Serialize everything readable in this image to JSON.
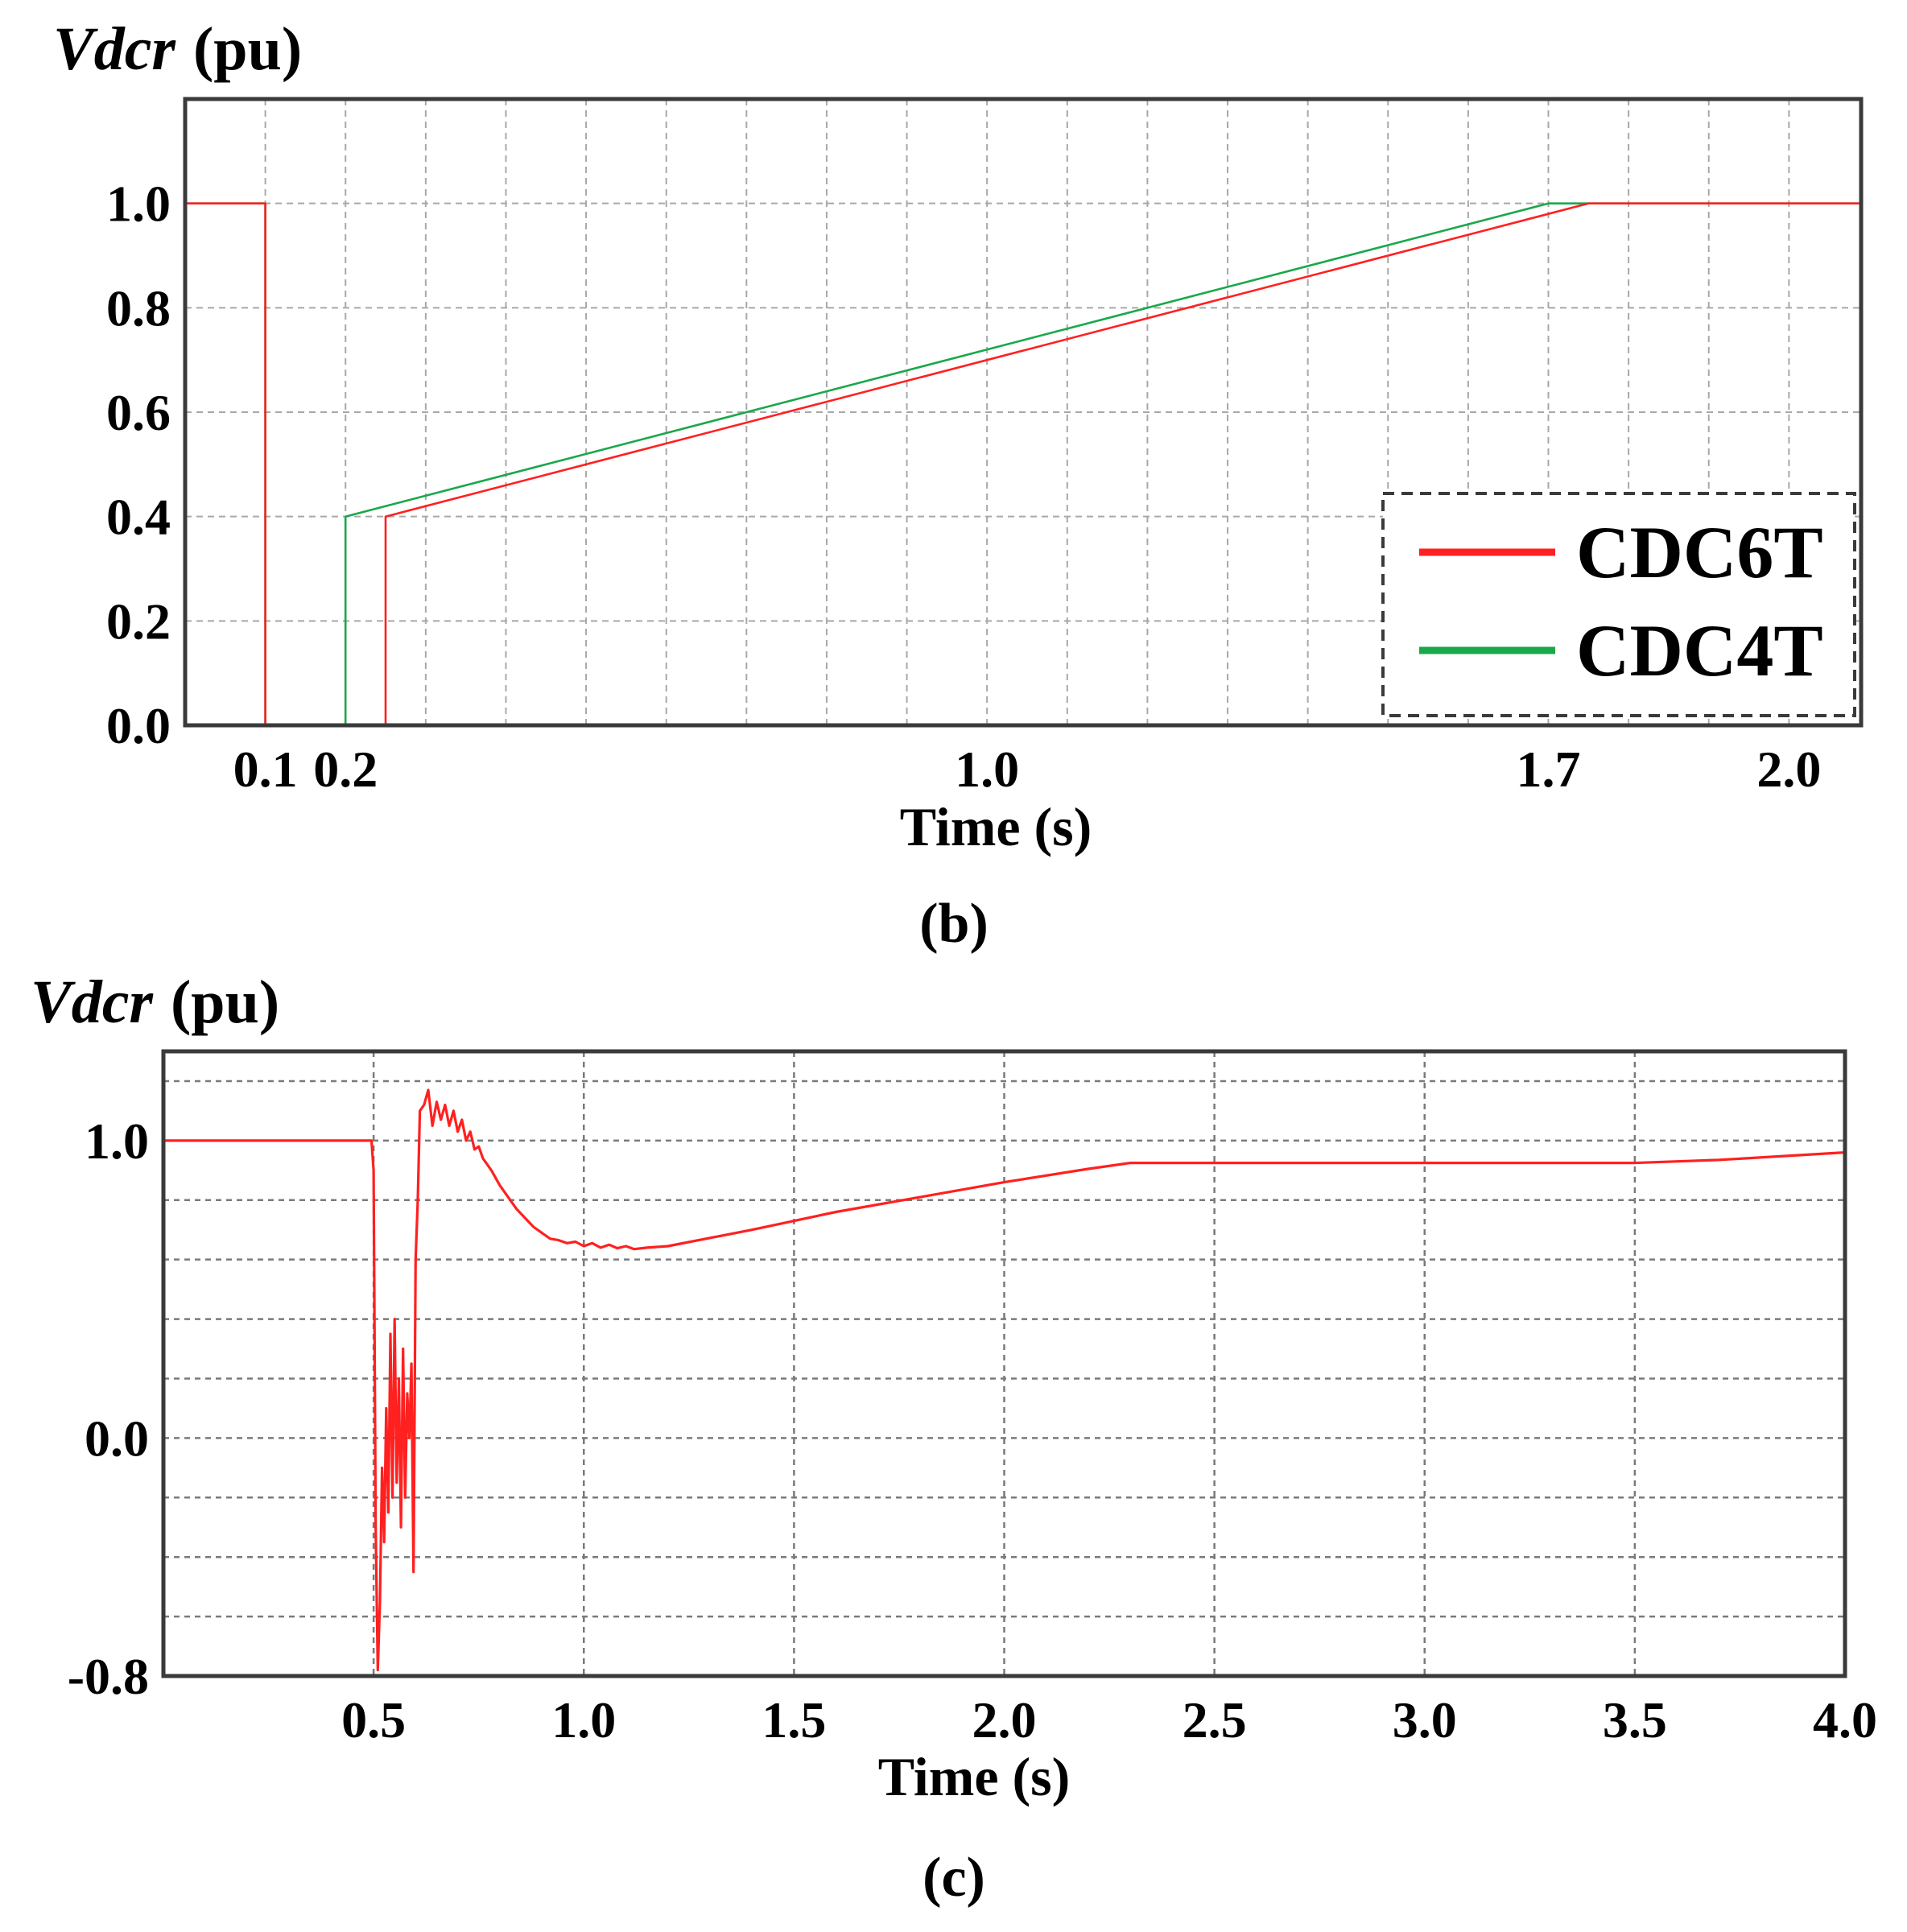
{
  "chart_data": [
    {
      "type": "line",
      "panel": "b",
      "caption": "(b)",
      "ylabel_var": "Vdcr",
      "ylabel_unit": "(pu)",
      "xlabel": "Time (s)",
      "xlim": [
        0.0,
        2.09
      ],
      "ylim": [
        0.0,
        1.2
      ],
      "xticks": [
        0.1,
        0.2,
        1.0,
        1.7,
        2.0
      ],
      "xtick_labels": [
        "0.1",
        "0.2",
        "1.0",
        "1.7",
        "2.0"
      ],
      "yticks": [
        0.0,
        0.2,
        0.4,
        0.6,
        0.8,
        1.0
      ],
      "ytick_labels": [
        "0.0",
        "0.2",
        "0.4",
        "0.6",
        "0.8",
        "1.0"
      ],
      "x_gridlines": [
        0.1,
        0.2,
        0.3,
        0.4,
        0.5,
        0.6,
        0.7,
        0.8,
        0.9,
        1.0,
        1.1,
        1.2,
        1.3,
        1.4,
        1.5,
        1.6,
        1.7,
        1.8,
        1.9,
        2.0
      ],
      "y_gridlines": [
        0.2,
        0.4,
        0.6,
        0.8,
        1.0
      ],
      "grid": true,
      "legend_position": "bottom-right",
      "series": [
        {
          "name": "CDC6T",
          "color": "#ff2020",
          "x": [
            0.0,
            0.1,
            0.1,
            0.25,
            0.25,
            1.75,
            2.09
          ],
          "y": [
            1.0,
            1.0,
            0.0,
            0.0,
            0.4,
            1.0,
            1.0
          ]
        },
        {
          "name": "CDC4T",
          "color": "#1aa84a",
          "x": [
            0.0,
            0.1,
            0.1,
            0.2,
            0.2,
            1.7,
            2.09
          ],
          "y": [
            1.0,
            1.0,
            0.0,
            0.0,
            0.4,
            1.0,
            1.0
          ]
        }
      ]
    },
    {
      "type": "line",
      "panel": "c",
      "caption": "(c)",
      "ylabel_var": "Vdcr",
      "ylabel_unit": "(pu)",
      "xlabel": "Time (s)",
      "xlim": [
        0.0,
        4.0
      ],
      "ylim": [
        -0.8,
        1.3
      ],
      "xticks": [
        0.5,
        1.0,
        1.5,
        2.0,
        2.5,
        3.0,
        3.5,
        4.0
      ],
      "xtick_labels": [
        "0.5",
        "1.0",
        "1.5",
        "2.0",
        "2.5",
        "3.0",
        "3.5",
        "4.0"
      ],
      "yticks": [
        -0.8,
        0.0,
        1.0
      ],
      "ytick_labels": [
        "-0.8",
        "0.0",
        "1.0"
      ],
      "x_gridlines": [
        0.5,
        1.0,
        1.5,
        2.0,
        2.5,
        3.0,
        3.5
      ],
      "y_gridlines": [
        -0.6,
        -0.4,
        -0.2,
        0.0,
        0.2,
        0.4,
        0.6,
        0.8,
        1.0,
        1.2
      ],
      "grid": true,
      "series": [
        {
          "name": "Vdcr",
          "color": "#ff2020",
          "x": [
            0.0,
            0.495,
            0.5,
            0.505,
            0.51,
            0.515,
            0.52,
            0.525,
            0.53,
            0.535,
            0.54,
            0.545,
            0.55,
            0.555,
            0.56,
            0.565,
            0.57,
            0.575,
            0.58,
            0.585,
            0.59,
            0.595,
            0.6,
            0.605,
            0.61,
            0.62,
            0.63,
            0.64,
            0.65,
            0.66,
            0.67,
            0.68,
            0.69,
            0.7,
            0.71,
            0.72,
            0.73,
            0.74,
            0.75,
            0.76,
            0.78,
            0.8,
            0.82,
            0.84,
            0.86,
            0.88,
            0.9,
            0.92,
            0.94,
            0.96,
            0.98,
            1.0,
            1.02,
            1.04,
            1.06,
            1.08,
            1.1,
            1.12,
            1.15,
            1.2,
            1.4,
            1.6,
            1.8,
            2.0,
            2.2,
            2.3,
            2.5,
            3.0,
            3.5,
            3.7,
            4.0
          ],
          "y": [
            1.0,
            1.0,
            0.9,
            -0.3,
            -0.78,
            -0.55,
            -0.1,
            -0.35,
            0.1,
            -0.25,
            0.35,
            -0.2,
            0.4,
            -0.15,
            0.2,
            -0.3,
            0.3,
            -0.2,
            0.15,
            0.0,
            0.25,
            -0.45,
            0.6,
            0.8,
            1.1,
            1.12,
            1.17,
            1.05,
            1.13,
            1.07,
            1.12,
            1.05,
            1.1,
            1.03,
            1.07,
            1.0,
            1.03,
            0.97,
            0.98,
            0.94,
            0.9,
            0.85,
            0.81,
            0.77,
            0.74,
            0.71,
            0.69,
            0.67,
            0.665,
            0.655,
            0.66,
            0.645,
            0.655,
            0.64,
            0.65,
            0.638,
            0.645,
            0.635,
            0.64,
            0.645,
            0.7,
            0.76,
            0.81,
            0.86,
            0.905,
            0.925,
            0.925,
            0.925,
            0.925,
            0.935,
            0.96
          ]
        }
      ]
    }
  ]
}
